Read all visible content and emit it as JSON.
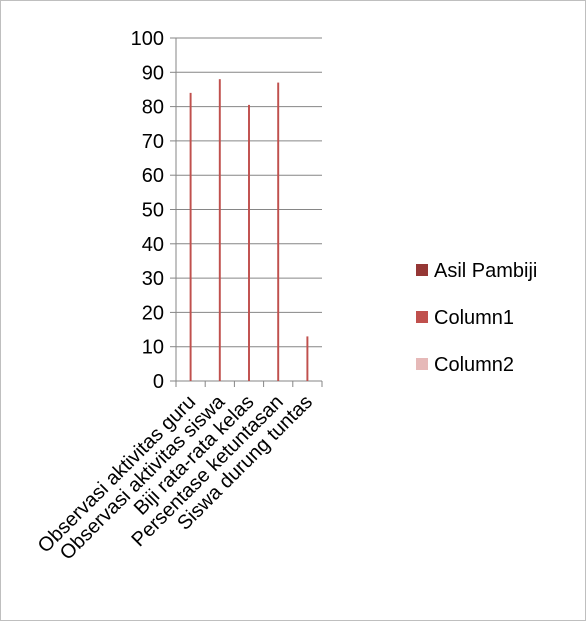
{
  "chart_data": {
    "type": "bar",
    "categories": [
      "Observasi aktivitas guru",
      "Observasi aktivitas siswa",
      "Biji rata-rata kelas",
      "Persentase ketuntasan",
      "Siswa durung tuntas"
    ],
    "series": [
      {
        "name": "Asil Pambiji",
        "values": [
          0,
          0,
          0,
          0,
          0
        ],
        "color": "#953735"
      },
      {
        "name": "Column1",
        "values": [
          84,
          88,
          80.5,
          87,
          13
        ],
        "color": "#C0504D"
      },
      {
        "name": "Column2",
        "values": [
          0,
          0,
          0,
          0,
          0
        ],
        "color": "#E6B9B8"
      }
    ],
    "ylim": [
      0,
      100
    ],
    "yticks": [
      0,
      10,
      20,
      30,
      40,
      50,
      60,
      70,
      80,
      90,
      100
    ],
    "grid": true,
    "legend_position": "right"
  }
}
